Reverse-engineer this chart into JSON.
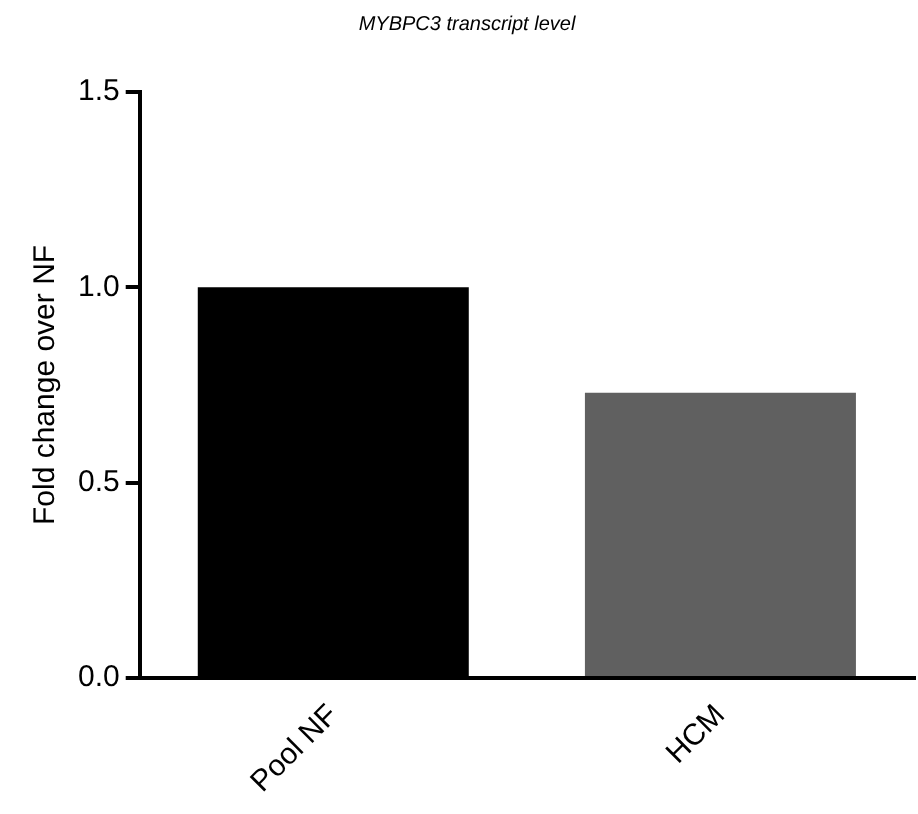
{
  "chart_data": {
    "type": "bar",
    "title": "MYBPC3 transcript level",
    "ylabel": "Fold change over NF",
    "categories": [
      "Pool NF",
      "HCM"
    ],
    "values": [
      1.0,
      0.73
    ],
    "colors": [
      "#000000",
      "#606060"
    ],
    "ylim": [
      0,
      1.5
    ],
    "yticks": [
      {
        "value": 0,
        "label": "0.0"
      },
      0.5,
      {
        "value": 1,
        "label": "1.0"
      },
      1.5
    ],
    "grid": false,
    "legend": false
  }
}
